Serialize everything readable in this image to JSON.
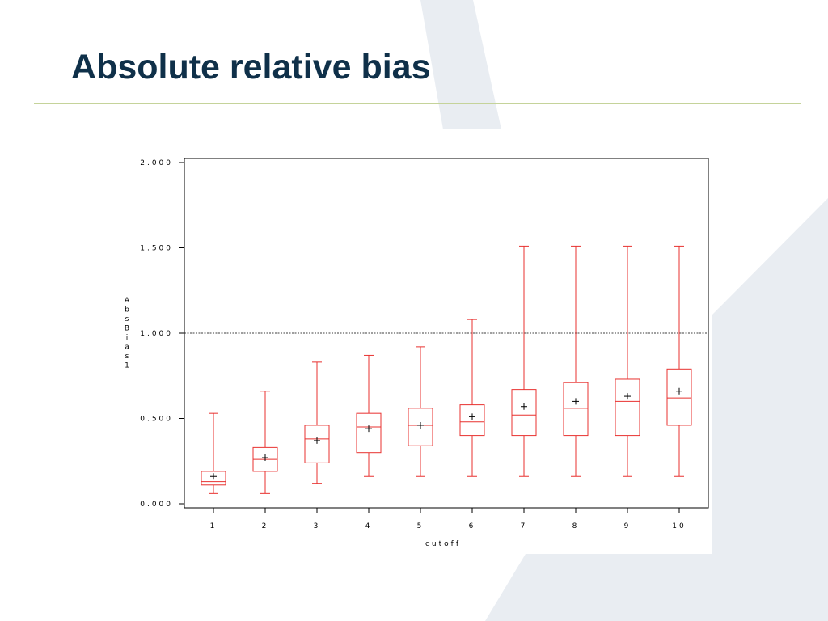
{
  "slide": {
    "title": "Absolute relative bias"
  },
  "colors": {
    "title": "#0f3049",
    "rule": "#c5d39a",
    "box": "#e8312f",
    "decoration": "#e9edf2"
  },
  "chart_data": {
    "type": "box",
    "ylabel": "AbsBias1",
    "xlabel": "cutoff",
    "ylim": [
      0,
      2
    ],
    "y_ticks": [
      "0.000",
      "0.500",
      "1.000",
      "1.500",
      "2.000"
    ],
    "categories": [
      "1",
      "2",
      "3",
      "4",
      "5",
      "6",
      "7",
      "8",
      "9",
      "10"
    ],
    "reference_line": 1.0,
    "boxes": [
      {
        "min": 0.06,
        "q1": 0.11,
        "median": 0.13,
        "q3": 0.19,
        "max": 0.53,
        "mean": 0.16
      },
      {
        "min": 0.06,
        "q1": 0.19,
        "median": 0.26,
        "q3": 0.33,
        "max": 0.66,
        "mean": 0.27
      },
      {
        "min": 0.12,
        "q1": 0.24,
        "median": 0.38,
        "q3": 0.46,
        "max": 0.83,
        "mean": 0.37
      },
      {
        "min": 0.16,
        "q1": 0.3,
        "median": 0.45,
        "q3": 0.53,
        "max": 0.87,
        "mean": 0.44
      },
      {
        "min": 0.16,
        "q1": 0.34,
        "median": 0.46,
        "q3": 0.56,
        "max": 0.92,
        "mean": 0.46
      },
      {
        "min": 0.16,
        "q1": 0.4,
        "median": 0.48,
        "q3": 0.58,
        "max": 1.08,
        "mean": 0.51
      },
      {
        "min": 0.16,
        "q1": 0.4,
        "median": 0.52,
        "q3": 0.67,
        "max": 1.51,
        "mean": 0.57
      },
      {
        "min": 0.16,
        "q1": 0.4,
        "median": 0.56,
        "q3": 0.71,
        "max": 1.51,
        "mean": 0.6
      },
      {
        "min": 0.16,
        "q1": 0.4,
        "median": 0.6,
        "q3": 0.73,
        "max": 1.51,
        "mean": 0.63
      },
      {
        "min": 0.16,
        "q1": 0.46,
        "median": 0.62,
        "q3": 0.79,
        "max": 1.51,
        "mean": 0.66
      }
    ]
  }
}
